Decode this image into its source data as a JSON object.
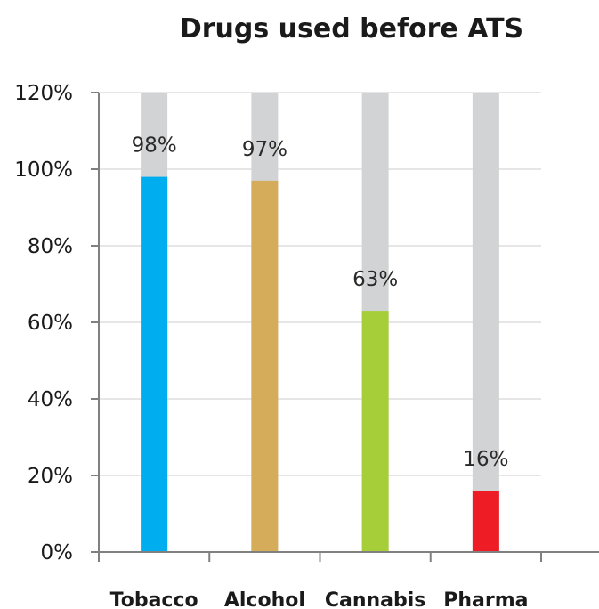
{
  "chart_data": {
    "type": "bar",
    "title": "Drugs used before ATS",
    "xlabel": "",
    "ylabel": "",
    "categories": [
      "Tobacco",
      "Alcohol",
      "Cannabis",
      "Pharma"
    ],
    "values": [
      98,
      97,
      63,
      16
    ],
    "data_labels": [
      "98%",
      "97%",
      "63%",
      "16%"
    ],
    "bar_colors": [
      "#00AEEF",
      "#D4AC5A",
      "#A6CE39",
      "#EE1C25"
    ],
    "background_bar_color": "#D1D3D4",
    "background_bar_value": 120,
    "ylim": [
      0,
      120
    ],
    "yticks": [
      0,
      20,
      40,
      60,
      80,
      100,
      120
    ],
    "ytick_labels": [
      "0%",
      "20%",
      "40%",
      "60%",
      "80%",
      "100%",
      "120%"
    ],
    "grid": true,
    "grid_color": "#e6e6e6",
    "axis_color": "#808080",
    "legend": "none"
  }
}
